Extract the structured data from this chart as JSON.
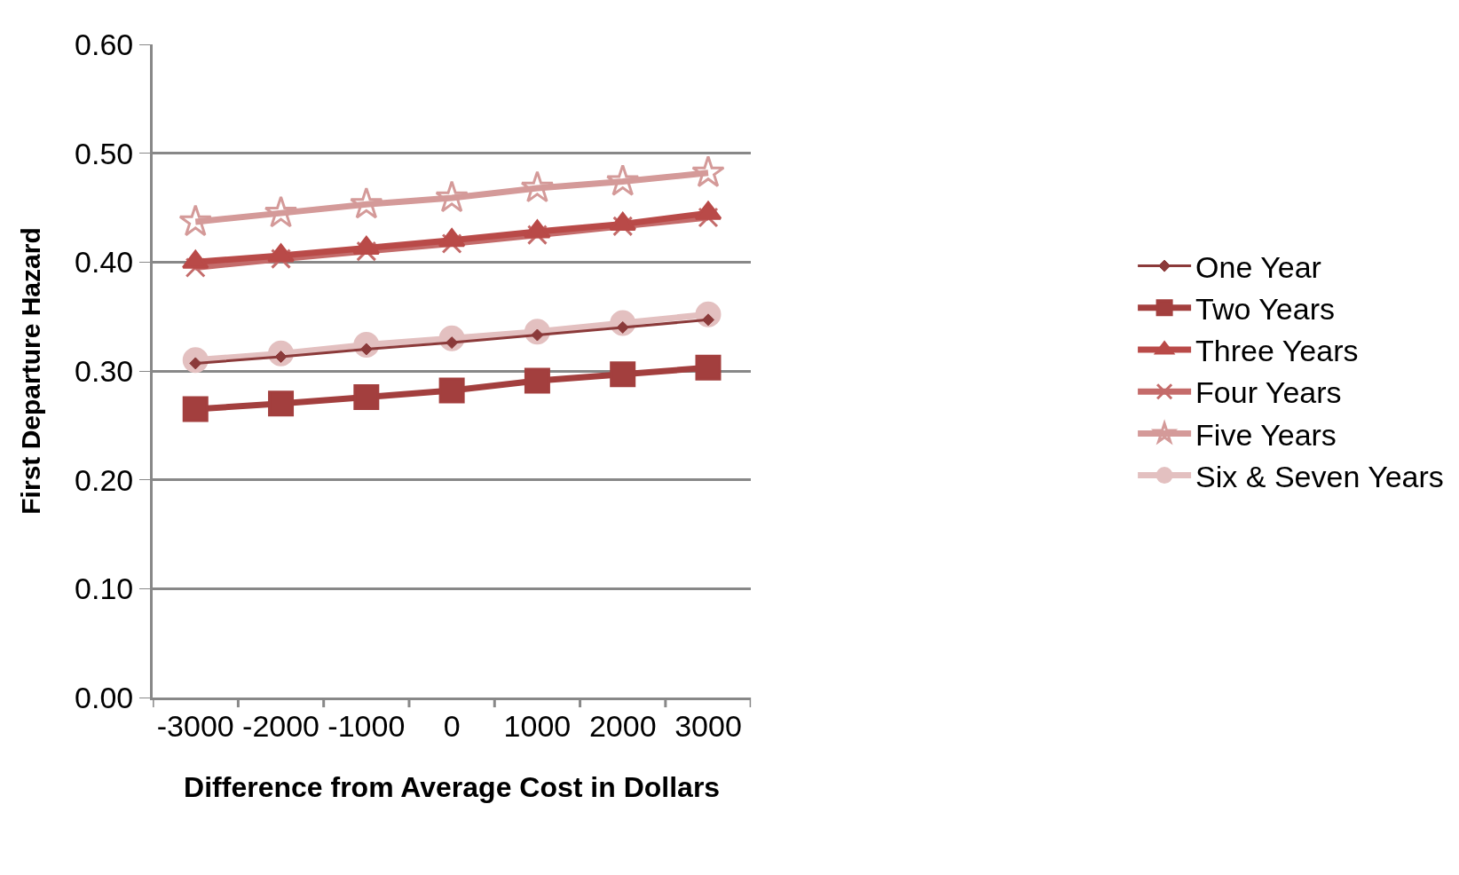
{
  "chart_data": {
    "type": "line",
    "xlabel": "Difference from Average Cost in Dollars",
    "ylabel": "First Departure Hazard",
    "categories": [
      "-3000",
      "-2000",
      "-1000",
      "0",
      "1000",
      "2000",
      "3000"
    ],
    "ylim": [
      0,
      0.6
    ],
    "yticks": [
      {
        "value": 0,
        "label": "0.00"
      },
      {
        "value": 0.1,
        "label": "0.10"
      },
      {
        "value": 0.2,
        "label": "0.20"
      },
      {
        "value": 0.3,
        "label": "0.30"
      },
      {
        "value": 0.4,
        "label": "0.40"
      },
      {
        "value": 0.5,
        "label": "0.50"
      },
      {
        "value": 0.6,
        "label": "0.60"
      }
    ],
    "grid": "y",
    "legend": "right",
    "line_style": "solid",
    "series": [
      {
        "name": "One Year",
        "color": "#8b3a3a",
        "marker": "diamond",
        "values": [
          0.307,
          0.313,
          0.32,
          0.326,
          0.333,
          0.34,
          0.347
        ]
      },
      {
        "name": "Two Years",
        "color": "#a33f3e",
        "marker": "square",
        "values": [
          0.265,
          0.27,
          0.276,
          0.282,
          0.291,
          0.297,
          0.303
        ]
      },
      {
        "name": "Three Years",
        "color": "#b94a48",
        "marker": "triangle",
        "values": [
          0.4,
          0.406,
          0.413,
          0.42,
          0.428,
          0.435,
          0.445
        ]
      },
      {
        "name": "Four Years",
        "color": "#c46b6a",
        "marker": "cross",
        "values": [
          0.395,
          0.403,
          0.41,
          0.417,
          0.425,
          0.433,
          0.441
        ]
      },
      {
        "name": "Five Years",
        "color": "#d49a99",
        "marker": "star",
        "values": [
          0.437,
          0.445,
          0.453,
          0.459,
          0.468,
          0.474,
          0.482
        ]
      },
      {
        "name": "Six & Seven Years",
        "color": "#e3c0c0",
        "marker": "circle",
        "values": [
          0.31,
          0.316,
          0.324,
          0.33,
          0.336,
          0.344,
          0.352
        ]
      }
    ]
  }
}
